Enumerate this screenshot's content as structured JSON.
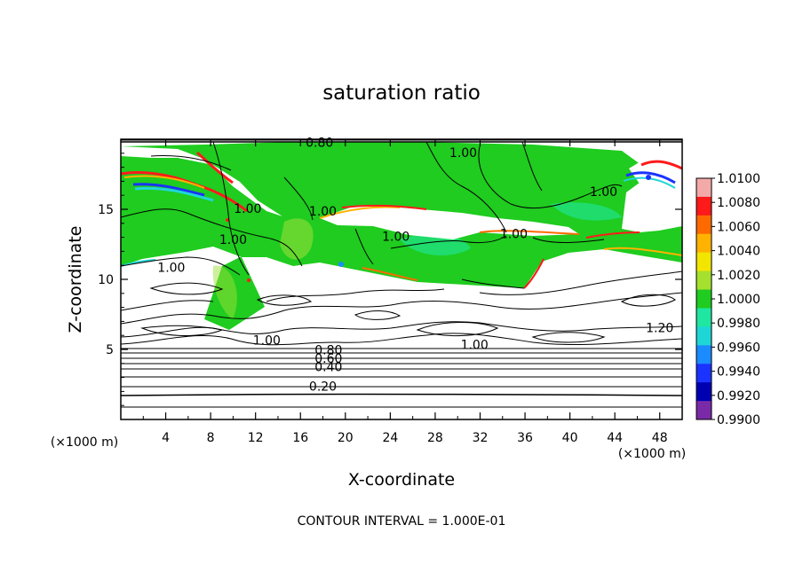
{
  "chart_data": {
    "type": "heatmap",
    "title": "saturation ratio",
    "xlabel": "X-coordinate",
    "ylabel": "Z-coordinate",
    "x_unit": "(×1000 m)",
    "z_unit": "(×1000 m)",
    "xlim": [
      0,
      50
    ],
    "ylim": [
      0,
      20
    ],
    "x_ticks": [
      "4",
      "8",
      "12",
      "16",
      "20",
      "24",
      "28",
      "32",
      "36",
      "40",
      "44",
      "48"
    ],
    "y_ticks": [
      "5",
      "10",
      "15"
    ],
    "colorbar": {
      "range": [
        0.99,
        1.01
      ],
      "labels": [
        "1.0100",
        "1.0080",
        "1.0060",
        "1.0040",
        "1.0020",
        "1.0000",
        "0.9980",
        "0.9960",
        "0.9940",
        "0.9920",
        "0.9900"
      ],
      "colors": [
        "#f4a9a9",
        "#ff1a1a",
        "#ff6a00",
        "#ffb300",
        "#f2e600",
        "#a6e02e",
        "#1fcc1f",
        "#1fe6a0",
        "#1fd6d6",
        "#1a8cff",
        "#1a33ff",
        "#0000b3",
        "#7a2aa8"
      ]
    },
    "contour_labels": [
      {
        "text": "0.80",
        "x": 17.7,
        "z": 19.7
      },
      {
        "text": "1.00",
        "x": 30.5,
        "z": 19.0
      },
      {
        "text": "1.00",
        "x": 11.3,
        "z": 15.0
      },
      {
        "text": "1.00",
        "x": 18.0,
        "z": 14.8
      },
      {
        "text": "1.00",
        "x": 43.0,
        "z": 16.2
      },
      {
        "text": "1.00",
        "x": 24.5,
        "z": 13.0
      },
      {
        "text": "1.00",
        "x": 35.0,
        "z": 13.2
      },
      {
        "text": "1.00",
        "x": 10.0,
        "z": 12.8
      },
      {
        "text": "1.00",
        "x": 4.5,
        "z": 10.8
      },
      {
        "text": "1.00",
        "x": 13.0,
        "z": 5.6
      },
      {
        "text": "1.00",
        "x": 31.5,
        "z": 5.3
      },
      {
        "text": "1.20",
        "x": 48.0,
        "z": 6.5
      },
      {
        "text": "0.80",
        "x": 18.5,
        "z": 4.9
      },
      {
        "text": "0.60",
        "x": 18.5,
        "z": 4.3
      },
      {
        "text": "0.40",
        "x": 18.5,
        "z": 3.7
      },
      {
        "text": "0.20",
        "x": 18.0,
        "z": 2.3
      }
    ],
    "contour_interval": "CONTOUR INTERVAL = 1.000E-01"
  }
}
